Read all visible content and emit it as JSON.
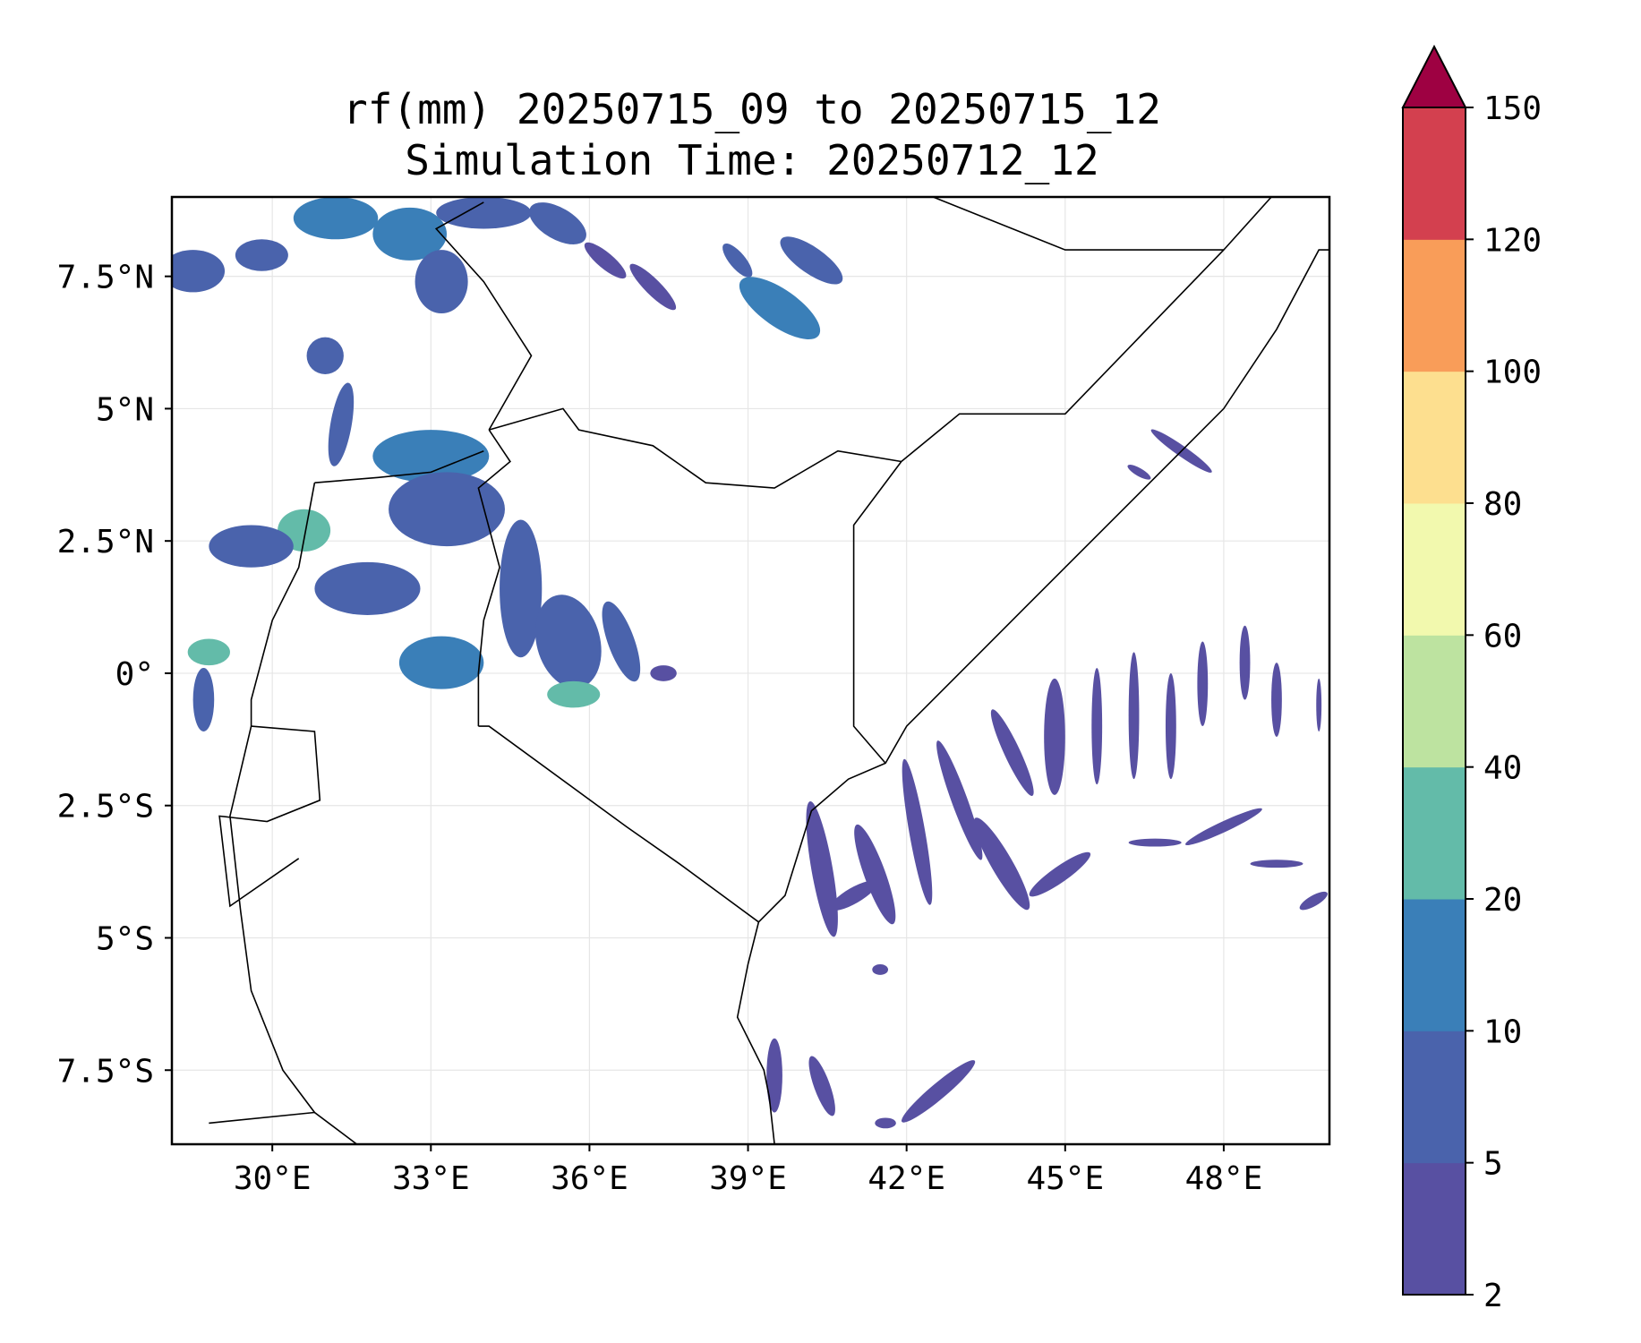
{
  "title": {
    "line1": "rf(mm) 20250715_09 to 20250715_12",
    "line2": "Simulation Time: 20250712_12"
  },
  "map": {
    "extent": {
      "lon_min": 28.1,
      "lon_max": 50.0,
      "lat_min": -8.9,
      "lat_max": 9.0
    },
    "lon_ticks": [
      30,
      33,
      36,
      39,
      42,
      45,
      48
    ],
    "lon_tick_labels": [
      "30°E",
      "33°E",
      "36°E",
      "39°E",
      "42°E",
      "45°E",
      "48°E"
    ],
    "lat_ticks": [
      7.5,
      5,
      2.5,
      0,
      -2.5,
      -5,
      -7.5
    ],
    "lat_tick_labels": [
      "7.5°N",
      "5°N",
      "2.5°N",
      "0°",
      "2.5°S",
      "5°S",
      "7.5°S"
    ],
    "gridlines": true,
    "borders": [
      {
        "name": "ethiopia-kenya",
        "points": [
          [
            34.1,
            4.6
          ],
          [
            35.5,
            5.0
          ],
          [
            35.8,
            4.6
          ],
          [
            37.2,
            4.3
          ],
          [
            38.2,
            3.6
          ],
          [
            39.5,
            3.5
          ],
          [
            40.7,
            4.2
          ],
          [
            41.9,
            4.0
          ]
        ]
      },
      {
        "name": "uganda-kenya",
        "points": [
          [
            34.1,
            4.6
          ],
          [
            34.5,
            4.0
          ],
          [
            33.9,
            3.5
          ],
          [
            34.3,
            2.0
          ],
          [
            34.0,
            1.0
          ],
          [
            33.9,
            0.0
          ],
          [
            33.9,
            -1.0
          ]
        ]
      },
      {
        "name": "tanzania-kenya",
        "points": [
          [
            33.9,
            -1.0
          ],
          [
            34.1,
            -1.0
          ],
          [
            36.7,
            -2.9
          ],
          [
            37.7,
            -3.6
          ],
          [
            39.2,
            -4.7
          ]
        ]
      },
      {
        "name": "kenya-somalia",
        "points": [
          [
            41.9,
            4.0
          ],
          [
            41.0,
            2.8
          ],
          [
            41.0,
            -1.0
          ],
          [
            41.6,
            -1.7
          ]
        ]
      },
      {
        "name": "ethiopia-somalia",
        "points": [
          [
            41.9,
            4.0
          ],
          [
            43.0,
            4.9
          ],
          [
            44.0,
            4.9
          ],
          [
            45.0,
            4.9
          ],
          [
            48.0,
            8.0
          ],
          [
            48.9,
            9.0
          ]
        ]
      },
      {
        "name": "uganda-sudan",
        "points": [
          [
            30.8,
            3.6
          ],
          [
            32.0,
            3.7
          ],
          [
            33.0,
            3.8
          ],
          [
            34.0,
            4.2
          ]
        ]
      },
      {
        "name": "south-sudan-ethiopia",
        "points": [
          [
            34.1,
            4.6
          ],
          [
            34.9,
            6.0
          ],
          [
            34.0,
            7.4
          ],
          [
            33.1,
            8.4
          ],
          [
            34.0,
            8.9
          ]
        ]
      },
      {
        "name": "uganda-drc",
        "points": [
          [
            30.8,
            3.6
          ],
          [
            30.5,
            2.0
          ],
          [
            30.0,
            1.0
          ],
          [
            29.6,
            -0.5
          ],
          [
            29.6,
            -1.0
          ]
        ]
      },
      {
        "name": "rwanda-burundi",
        "points": [
          [
            29.6,
            -1.0
          ],
          [
            30.8,
            -1.1
          ],
          [
            30.9,
            -2.4
          ],
          [
            29.9,
            -2.8
          ],
          [
            29.0,
            -2.7
          ],
          [
            29.2,
            -4.4
          ],
          [
            30.5,
            -3.5
          ]
        ]
      },
      {
        "name": "tanzania-west",
        "points": [
          [
            29.6,
            -1.0
          ],
          [
            29.2,
            -2.7
          ],
          [
            29.4,
            -4.5
          ],
          [
            29.6,
            -6.0
          ],
          [
            30.2,
            -7.5
          ],
          [
            30.8,
            -8.3
          ],
          [
            31.6,
            -8.9
          ]
        ]
      },
      {
        "name": "zambia-tanzania",
        "points": [
          [
            28.8,
            -8.5
          ],
          [
            30.8,
            -8.3
          ]
        ]
      },
      {
        "name": "east-coast",
        "points": [
          [
            39.2,
            -4.7
          ],
          [
            39.7,
            -4.2
          ],
          [
            40.2,
            -2.6
          ],
          [
            40.9,
            -2.0
          ],
          [
            41.6,
            -1.7
          ],
          [
            42.0,
            -1.0
          ],
          [
            43.5,
            0.5
          ],
          [
            45.0,
            2.0
          ],
          [
            46.6,
            3.6
          ],
          [
            48.0,
            5.0
          ],
          [
            49.0,
            6.5
          ],
          [
            49.8,
            8.0
          ],
          [
            50.0,
            8.0
          ]
        ]
      },
      {
        "name": "tanzania-coast",
        "points": [
          [
            39.2,
            -4.7
          ],
          [
            39.0,
            -5.5
          ],
          [
            38.8,
            -6.5
          ],
          [
            39.3,
            -7.5
          ],
          [
            39.4,
            -8.0
          ],
          [
            39.5,
            -8.9
          ]
        ]
      },
      {
        "name": "somaliland-ethiopia",
        "points": [
          [
            42.5,
            9.0
          ],
          [
            45.0,
            8.0
          ],
          [
            47.0,
            8.0
          ],
          [
            48.0,
            8.0
          ]
        ]
      }
    ]
  },
  "legend": {
    "label": "rf (mm)",
    "levels": [
      2,
      5,
      10,
      20,
      40,
      60,
      80,
      100,
      120,
      150
    ],
    "tick_labels": [
      "2",
      "5",
      "10",
      "20",
      "40",
      "60",
      "80",
      "100",
      "120",
      "150"
    ],
    "colors": [
      "#5850a2",
      "#4a63ac",
      "#3a7fb8",
      "#63bba9",
      "#bde3a0",
      "#f2f9ae",
      "#fddf8f",
      "#f99d59",
      "#d3404f"
    ],
    "extend_color": "#9e0142"
  },
  "chart_data": {
    "type": "heatmap",
    "title": "rf(mm) 20250715_09 to 20250715_12",
    "subtitle": "Simulation Time: 20250712_12",
    "x_range": [
      28.1,
      50.0
    ],
    "y_range": [
      -8.9,
      9.0
    ],
    "levels": [
      2,
      5,
      10,
      20,
      40,
      60,
      80,
      100,
      120,
      150
    ],
    "rain_cells": [
      {
        "lon": 28.5,
        "lat": 7.6,
        "w": 1.2,
        "h": 0.8,
        "ang": 0,
        "v": 8
      },
      {
        "lon": 29.8,
        "lat": 7.9,
        "w": 1.0,
        "h": 0.6,
        "ang": 0,
        "v": 6
      },
      {
        "lon": 31.2,
        "lat": 8.6,
        "w": 1.6,
        "h": 0.8,
        "ang": 0,
        "v": 12
      },
      {
        "lon": 32.6,
        "lat": 8.3,
        "w": 1.4,
        "h": 1.0,
        "ang": 0,
        "v": 15
      },
      {
        "lon": 33.2,
        "lat": 7.4,
        "w": 1.0,
        "h": 1.2,
        "ang": 0,
        "v": 7
      },
      {
        "lon": 34.0,
        "lat": 8.7,
        "w": 1.8,
        "h": 0.6,
        "ang": 0,
        "v": 6
      },
      {
        "lon": 35.4,
        "lat": 8.5,
        "w": 1.2,
        "h": 0.6,
        "ang": 30,
        "v": 5
      },
      {
        "lon": 36.3,
        "lat": 7.8,
        "w": 1.0,
        "h": 0.3,
        "ang": 40,
        "v": 4
      },
      {
        "lon": 37.2,
        "lat": 7.3,
        "w": 1.2,
        "h": 0.3,
        "ang": 45,
        "v": 4
      },
      {
        "lon": 38.8,
        "lat": 7.8,
        "w": 0.8,
        "h": 0.3,
        "ang": 50,
        "v": 5
      },
      {
        "lon": 39.6,
        "lat": 6.9,
        "w": 1.8,
        "h": 0.7,
        "ang": 35,
        "v": 12
      },
      {
        "lon": 40.2,
        "lat": 7.8,
        "w": 1.4,
        "h": 0.5,
        "ang": 35,
        "v": 7
      },
      {
        "lon": 31.0,
        "lat": 6.0,
        "w": 0.7,
        "h": 0.7,
        "ang": 0,
        "v": 5
      },
      {
        "lon": 31.3,
        "lat": 4.7,
        "w": 0.4,
        "h": 1.6,
        "ang": 10,
        "v": 5
      },
      {
        "lon": 33.0,
        "lat": 4.1,
        "w": 2.2,
        "h": 1.0,
        "ang": 0,
        "v": 14
      },
      {
        "lon": 33.3,
        "lat": 3.1,
        "w": 2.2,
        "h": 1.4,
        "ang": 0,
        "v": 8
      },
      {
        "lon": 30.6,
        "lat": 2.7,
        "w": 1.0,
        "h": 0.8,
        "ang": 0,
        "v": 25
      },
      {
        "lon": 29.6,
        "lat": 2.4,
        "w": 1.6,
        "h": 0.8,
        "ang": 0,
        "v": 6
      },
      {
        "lon": 28.8,
        "lat": 0.4,
        "w": 0.8,
        "h": 0.5,
        "ang": 0,
        "v": 20
      },
      {
        "lon": 28.7,
        "lat": -0.5,
        "w": 0.4,
        "h": 1.2,
        "ang": 0,
        "v": 5
      },
      {
        "lon": 31.8,
        "lat": 1.6,
        "w": 2.0,
        "h": 1.0,
        "ang": 0,
        "v": 5
      },
      {
        "lon": 33.2,
        "lat": 0.2,
        "w": 1.6,
        "h": 1.0,
        "ang": 0,
        "v": 10
      },
      {
        "lon": 34.7,
        "lat": 1.6,
        "w": 0.8,
        "h": 2.6,
        "ang": 0,
        "v": 6
      },
      {
        "lon": 35.6,
        "lat": 0.6,
        "w": 1.2,
        "h": 1.8,
        "ang": -15,
        "v": 7
      },
      {
        "lon": 35.7,
        "lat": -0.4,
        "w": 1.0,
        "h": 0.5,
        "ang": 0,
        "v": 20
      },
      {
        "lon": 36.6,
        "lat": 0.6,
        "w": 0.5,
        "h": 1.6,
        "ang": -20,
        "v": 6
      },
      {
        "lon": 37.4,
        "lat": 0.0,
        "w": 0.5,
        "h": 0.3,
        "ang": 0,
        "v": 4
      },
      {
        "lon": 47.2,
        "lat": 4.2,
        "w": 1.4,
        "h": 0.2,
        "ang": 35,
        "v": 4
      },
      {
        "lon": 46.4,
        "lat": 3.8,
        "w": 0.5,
        "h": 0.15,
        "ang": 30,
        "v": 3
      },
      {
        "lon": 40.4,
        "lat": -3.7,
        "w": 0.4,
        "h": 2.6,
        "ang": -10,
        "v": 4
      },
      {
        "lon": 41.0,
        "lat": -4.2,
        "w": 1.0,
        "h": 0.3,
        "ang": -30,
        "v": 4
      },
      {
        "lon": 41.4,
        "lat": -3.8,
        "w": 0.4,
        "h": 2.0,
        "ang": -20,
        "v": 3
      },
      {
        "lon": 42.2,
        "lat": -3.0,
        "w": 0.3,
        "h": 2.8,
        "ang": -10,
        "v": 4
      },
      {
        "lon": 43.0,
        "lat": -2.4,
        "w": 0.3,
        "h": 2.4,
        "ang": -20,
        "v": 4
      },
      {
        "lon": 43.8,
        "lat": -3.6,
        "w": 0.4,
        "h": 2.0,
        "ang": -30,
        "v": 4
      },
      {
        "lon": 44.0,
        "lat": -1.5,
        "w": 0.3,
        "h": 1.8,
        "ang": -25,
        "v": 3
      },
      {
        "lon": 44.8,
        "lat": -1.2,
        "w": 0.4,
        "h": 2.2,
        "ang": 0,
        "v": 4
      },
      {
        "lon": 44.9,
        "lat": -3.8,
        "w": 1.4,
        "h": 0.3,
        "ang": -35,
        "v": 4
      },
      {
        "lon": 45.6,
        "lat": -1.0,
        "w": 0.2,
        "h": 2.2,
        "ang": 0,
        "v": 3
      },
      {
        "lon": 46.3,
        "lat": -0.8,
        "w": 0.2,
        "h": 2.4,
        "ang": 0,
        "v": 3
      },
      {
        "lon": 47.0,
        "lat": -1.0,
        "w": 0.2,
        "h": 2.0,
        "ang": 0,
        "v": 3
      },
      {
        "lon": 47.6,
        "lat": -0.2,
        "w": 0.2,
        "h": 1.6,
        "ang": 0,
        "v": 3
      },
      {
        "lon": 48.4,
        "lat": 0.2,
        "w": 0.2,
        "h": 1.4,
        "ang": 0,
        "v": 3
      },
      {
        "lon": 49.0,
        "lat": -0.5,
        "w": 0.2,
        "h": 1.4,
        "ang": 0,
        "v": 3
      },
      {
        "lon": 49.8,
        "lat": -0.6,
        "w": 0.1,
        "h": 1.0,
        "ang": 0,
        "v": 3
      },
      {
        "lon": 46.7,
        "lat": -3.2,
        "w": 1.0,
        "h": 0.15,
        "ang": 0,
        "v": 3
      },
      {
        "lon": 48.0,
        "lat": -2.9,
        "w": 1.6,
        "h": 0.2,
        "ang": -25,
        "v": 3
      },
      {
        "lon": 49.0,
        "lat": -3.6,
        "w": 1.0,
        "h": 0.15,
        "ang": 0,
        "v": 3
      },
      {
        "lon": 49.7,
        "lat": -4.3,
        "w": 0.6,
        "h": 0.2,
        "ang": -30,
        "v": 3
      },
      {
        "lon": 39.5,
        "lat": -7.6,
        "w": 0.3,
        "h": 1.4,
        "ang": 0,
        "v": 4
      },
      {
        "lon": 40.4,
        "lat": -7.8,
        "w": 0.3,
        "h": 1.2,
        "ang": -20,
        "v": 3
      },
      {
        "lon": 42.6,
        "lat": -7.9,
        "w": 1.8,
        "h": 0.3,
        "ang": -40,
        "v": 4
      },
      {
        "lon": 41.6,
        "lat": -8.5,
        "w": 0.4,
        "h": 0.2,
        "ang": 0,
        "v": 3
      },
      {
        "lon": 41.5,
        "lat": -5.6,
        "w": 0.3,
        "h": 0.2,
        "ang": 0,
        "v": 3
      }
    ]
  }
}
